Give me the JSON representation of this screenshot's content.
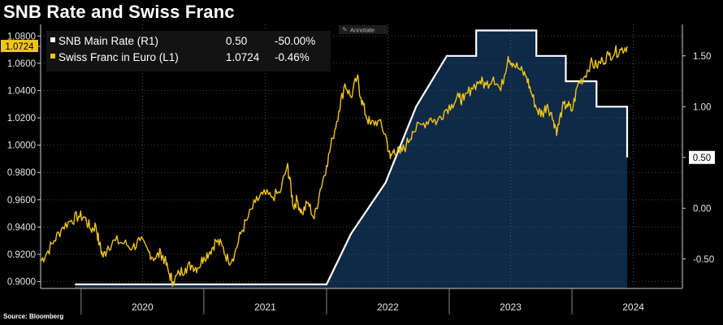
{
  "chart_data": {
    "type": "line",
    "title": "SNB Rate and Swiss Franc",
    "source": "Source: Bloomberg",
    "annotate_label": "Annotate",
    "x_range": [
      2019.67,
      2024.9
    ],
    "x_tick_labels": [
      "2020",
      "2021",
      "2022",
      "2023",
      "2024"
    ],
    "left_axis": {
      "ylim": [
        0.895,
        1.0885
      ],
      "ticks": [
        "0.9000",
        "0.9200",
        "0.9400",
        "0.9600",
        "0.9800",
        "1.0000",
        "1.0200",
        "1.0400",
        "1.0600",
        "1.0800"
      ]
    },
    "right_axis": {
      "ylim": [
        -0.79,
        1.81
      ],
      "ticks": [
        "-0.50",
        "0.00",
        "0.50",
        "1.00",
        "1.50"
      ]
    },
    "legend": [
      {
        "name": "SNB Main Rate (R1)",
        "value": "0.50",
        "change": "-50.00%",
        "marker_color": "#ffffff"
      },
      {
        "name": "Swiss Franc in Euro (L1)",
        "value": "1.0724",
        "change": "-0.46%",
        "marker_color": "#f0c419"
      }
    ],
    "series": [
      {
        "name": "SNB Main Rate",
        "axis": "right",
        "color": "#ffffff",
        "fill": "#0e2a47",
        "last_value_label": "0.50",
        "points": [
          [
            2019.95,
            -0.75
          ],
          [
            2022.0,
            -0.75
          ],
          [
            2022.2,
            -0.25
          ],
          [
            2022.48,
            0.25
          ],
          [
            2022.73,
            1.0
          ],
          [
            2022.98,
            1.5
          ],
          [
            2023.22,
            1.5
          ],
          [
            2023.22,
            1.75
          ],
          [
            2023.71,
            1.75
          ],
          [
            2023.71,
            1.5
          ],
          [
            2023.95,
            1.5
          ],
          [
            2023.95,
            1.25
          ],
          [
            2024.2,
            1.25
          ],
          [
            2024.2,
            1.0
          ],
          [
            2024.45,
            1.0
          ],
          [
            2024.45,
            0.5
          ]
        ]
      },
      {
        "name": "Swiss Franc in Euro",
        "axis": "left",
        "color": "#f0c419",
        "last_value_label": "1.0724",
        "points": [
          [
            2019.67,
            0.915
          ],
          [
            2019.72,
            0.921
          ],
          [
            2019.78,
            0.93
          ],
          [
            2019.85,
            0.94
          ],
          [
            2019.92,
            0.945
          ],
          [
            2019.98,
            0.948
          ],
          [
            2020.03,
            0.947
          ],
          [
            2020.08,
            0.938
          ],
          [
            2020.12,
            0.941
          ],
          [
            2020.15,
            0.927
          ],
          [
            2020.18,
            0.918
          ],
          [
            2020.22,
            0.926
          ],
          [
            2020.28,
            0.93
          ],
          [
            2020.35,
            0.928
          ],
          [
            2020.42,
            0.925
          ],
          [
            2020.48,
            0.93
          ],
          [
            2020.55,
            0.922
          ],
          [
            2020.6,
            0.917
          ],
          [
            2020.65,
            0.921
          ],
          [
            2020.68,
            0.916
          ],
          [
            2020.72,
            0.905
          ],
          [
            2020.75,
            0.9
          ],
          [
            2020.8,
            0.906
          ],
          [
            2020.85,
            0.91
          ],
          [
            2020.9,
            0.912
          ],
          [
            2020.95,
            0.91
          ],
          [
            2021.0,
            0.918
          ],
          [
            2021.05,
            0.922
          ],
          [
            2021.1,
            0.93
          ],
          [
            2021.15,
            0.926
          ],
          [
            2021.2,
            0.915
          ],
          [
            2021.25,
            0.92
          ],
          [
            2021.3,
            0.935
          ],
          [
            2021.35,
            0.945
          ],
          [
            2021.42,
            0.958
          ],
          [
            2021.48,
            0.964
          ],
          [
            2021.55,
            0.962
          ],
          [
            2021.62,
            0.965
          ],
          [
            2021.68,
            0.985
          ],
          [
            2021.7,
            0.975
          ],
          [
            2021.73,
            0.955
          ],
          [
            2021.76,
            0.96
          ],
          [
            2021.8,
            0.95
          ],
          [
            2021.85,
            0.958
          ],
          [
            2021.9,
            0.946
          ],
          [
            2021.95,
            0.968
          ],
          [
            2022.0,
            0.985
          ],
          [
            2022.05,
            1.005
          ],
          [
            2022.1,
            1.025
          ],
          [
            2022.15,
            1.045
          ],
          [
            2022.2,
            1.035
          ],
          [
            2022.25,
            1.05
          ],
          [
            2022.28,
            1.035
          ],
          [
            2022.32,
            1.022
          ],
          [
            2022.36,
            1.015
          ],
          [
            2022.42,
            1.018
          ],
          [
            2022.48,
            1.008
          ],
          [
            2022.52,
            0.99
          ],
          [
            2022.55,
            0.997
          ],
          [
            2022.6,
            0.994
          ],
          [
            2022.65,
            1.0
          ],
          [
            2022.7,
            1.01
          ],
          [
            2022.78,
            1.015
          ],
          [
            2022.85,
            1.02
          ],
          [
            2022.9,
            1.017
          ],
          [
            2022.96,
            1.025
          ],
          [
            2023.02,
            1.03
          ],
          [
            2023.08,
            1.035
          ],
          [
            2023.12,
            1.033
          ],
          [
            2023.18,
            1.042
          ],
          [
            2023.25,
            1.047
          ],
          [
            2023.3,
            1.044
          ],
          [
            2023.36,
            1.05
          ],
          [
            2023.42,
            1.04
          ],
          [
            2023.48,
            1.065
          ],
          [
            2023.52,
            1.06
          ],
          [
            2023.58,
            1.055
          ],
          [
            2023.63,
            1.05
          ],
          [
            2023.67,
            1.038
          ],
          [
            2023.72,
            1.025
          ],
          [
            2023.76,
            1.023
          ],
          [
            2023.8,
            1.03
          ],
          [
            2023.85,
            1.018
          ],
          [
            2023.88,
            1.01
          ],
          [
            2023.92,
            1.027
          ],
          [
            2023.96,
            1.03
          ],
          [
            2024.0,
            1.025
          ],
          [
            2024.05,
            1.045
          ],
          [
            2024.1,
            1.05
          ],
          [
            2024.15,
            1.06
          ],
          [
            2024.2,
            1.058
          ],
          [
            2024.25,
            1.062
          ],
          [
            2024.3,
            1.066
          ],
          [
            2024.35,
            1.068
          ],
          [
            2024.4,
            1.07
          ],
          [
            2024.45,
            1.0724
          ]
        ]
      }
    ]
  }
}
